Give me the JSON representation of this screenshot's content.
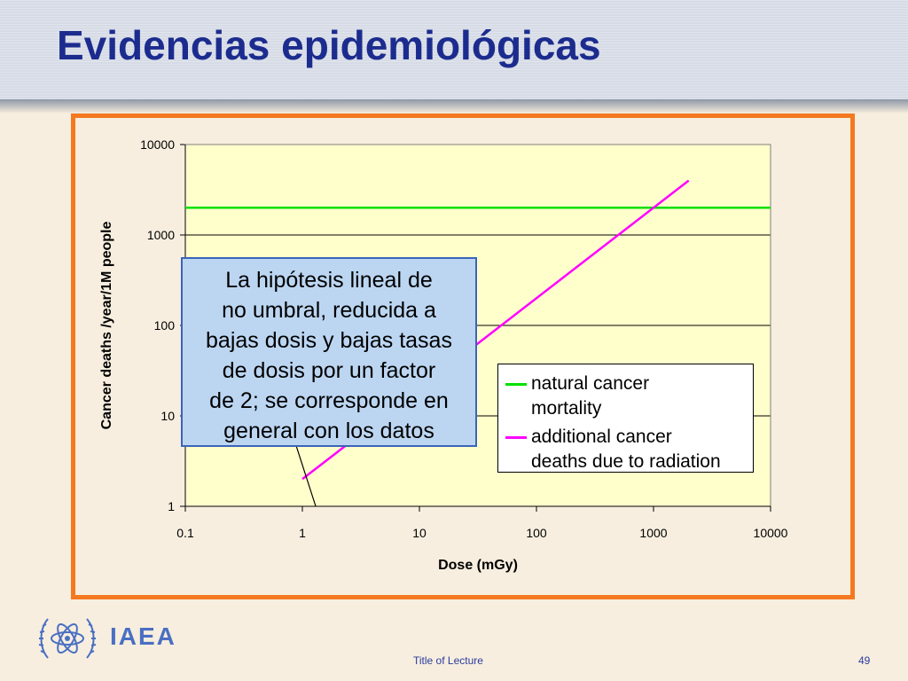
{
  "slide": {
    "title": "Evidencias epidemiológicas",
    "callout_lines": [
      "La hipótesis lineal de",
      "no umbral, reducida a",
      "bajas dosis y bajas tasas",
      "de dosis por un factor",
      "de 2; se corresponde en",
      "general con los datos"
    ],
    "footer": {
      "brand": "IAEA",
      "lecture_title": "Title of Lecture",
      "page_number": "49"
    }
  },
  "colors": {
    "frame": "#f47920",
    "plot_area": "#ffffcc",
    "title": "#1c2c8e",
    "natural": "#00e000",
    "radiation": "#ff00ff",
    "callout_fill": "#bcd6f2",
    "callout_border": "#3a64b8"
  },
  "chart_data": {
    "type": "line",
    "xlabel": "Dose (mGy)",
    "ylabel": "Cancer deaths /year/1M people",
    "x_scale": "log",
    "y_scale": "log",
    "xlim": [
      0.1,
      10000
    ],
    "ylim": [
      1,
      10000
    ],
    "x_ticks": [
      "0.1",
      "1",
      "10",
      "100",
      "1000",
      "10000"
    ],
    "y_ticks": [
      "1",
      "10",
      "100",
      "1000",
      "10000"
    ],
    "grid": "horizontal",
    "series": [
      {
        "name": "natural cancer mortality",
        "x": [
          0.1,
          10000
        ],
        "y": [
          2000,
          2000
        ]
      },
      {
        "name": "additional cancer deaths due to radiation",
        "x": [
          1,
          2000
        ],
        "y": [
          2,
          4000
        ]
      }
    ],
    "legend_lines": [
      [
        "natural cancer",
        "mortality"
      ],
      [
        "additional cancer",
        "deaths due to radiation"
      ]
    ],
    "callout_pointer": {
      "x": [
        0.7,
        1.3
      ],
      "y": [
        12,
        1
      ]
    }
  }
}
